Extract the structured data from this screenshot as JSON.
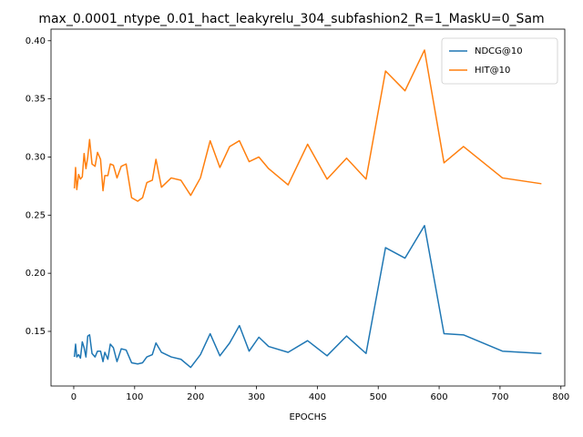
{
  "chart_data": {
    "type": "line",
    "title": "max_0.0001_ntype_0.01_hact_leakyrelu_304_subfashion2_R=1_MaskU=0_Sam",
    "xlabel": "EPOCHS",
    "x": [
      1,
      3,
      5,
      8,
      11,
      14,
      17,
      20,
      23,
      26,
      30,
      35,
      39,
      44,
      48,
      51,
      56,
      60,
      65,
      71,
      78,
      86,
      95,
      105,
      113,
      120,
      129,
      135,
      144,
      160,
      176,
      192,
      208,
      224,
      240,
      256,
      272,
      288,
      304,
      320,
      352,
      384,
      416,
      448,
      480,
      512,
      544,
      576,
      608,
      640,
      704,
      768
    ],
    "series": [
      {
        "name": "NDCG@10",
        "color": "#1f77b4",
        "values": [
          0.128,
          0.139,
          0.128,
          0.13,
          0.127,
          0.141,
          0.136,
          0.128,
          0.146,
          0.147,
          0.131,
          0.128,
          0.133,
          0.133,
          0.124,
          0.132,
          0.126,
          0.139,
          0.136,
          0.124,
          0.135,
          0.134,
          0.123,
          0.122,
          0.123,
          0.128,
          0.13,
          0.14,
          0.132,
          0.128,
          0.126,
          0.119,
          0.13,
          0.148,
          0.129,
          0.14,
          0.155,
          0.133,
          0.145,
          0.137,
          0.132,
          0.142,
          0.129,
          0.146,
          0.131,
          0.222,
          0.213,
          0.241,
          0.148,
          0.147,
          0.133,
          0.131
        ]
      },
      {
        "name": "HIT@10",
        "color": "#ff7f0e",
        "values": [
          0.273,
          0.291,
          0.272,
          0.285,
          0.281,
          0.283,
          0.303,
          0.29,
          0.3,
          0.315,
          0.294,
          0.292,
          0.304,
          0.298,
          0.271,
          0.284,
          0.284,
          0.294,
          0.293,
          0.282,
          0.292,
          0.294,
          0.265,
          0.262,
          0.265,
          0.278,
          0.28,
          0.298,
          0.274,
          0.282,
          0.28,
          0.267,
          0.282,
          0.314,
          0.291,
          0.309,
          0.314,
          0.296,
          0.3,
          0.29,
          0.276,
          0.311,
          0.281,
          0.299,
          0.281,
          0.374,
          0.357,
          0.392,
          0.295,
          0.309,
          0.282,
          0.277
        ]
      }
    ],
    "xlim": [
      -37.35,
      806.35
    ],
    "xticks": [
      0,
      100,
      200,
      300,
      400,
      500,
      600,
      700,
      800
    ],
    "ylim": [
      0.103,
      0.41
    ],
    "yticks": [
      0.15,
      {
        "value": 0.2,
        "label": "0.20"
      },
      0.25,
      {
        "value": 0.3,
        "label": "0.30"
      },
      0.35,
      {
        "value": 0.4,
        "label": "0.40"
      }
    ],
    "legend": "upper right"
  }
}
